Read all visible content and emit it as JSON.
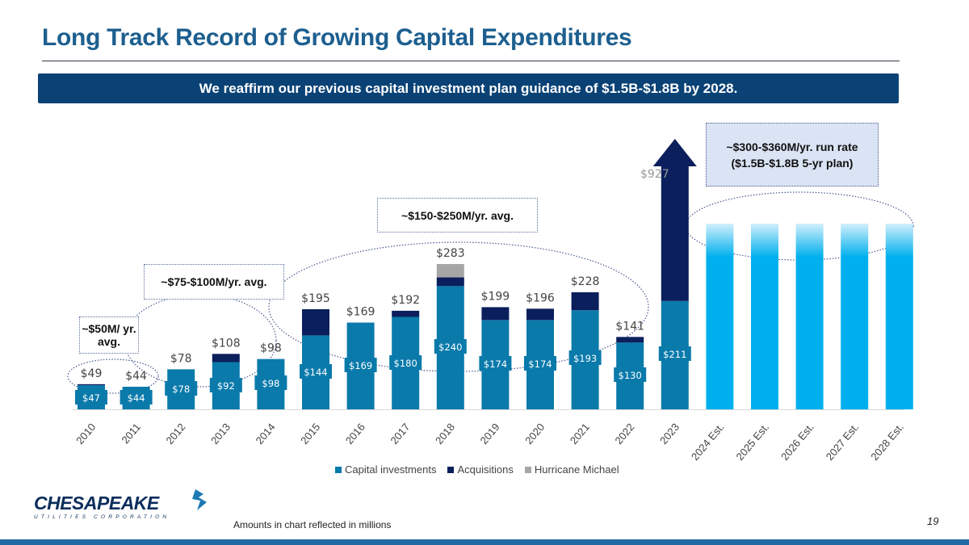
{
  "header": {
    "title": "Long Track Record of Growing Capital Expenditures",
    "banner": "We reaffirm our previous capital investment plan guidance of $1.5B-$1.8B by 2028."
  },
  "callouts": {
    "c50": "~$50M/ yr. avg.",
    "c75": "~$75-$100M/yr. avg.",
    "c150": "~$150-$250M/yr. avg.",
    "run_rate_line1": "~$300-$360M/yr. run rate",
    "run_rate_line2": "($1.5B-$1.8B 5-yr plan)"
  },
  "footer": {
    "note": "Amounts in chart reflected in millions",
    "page": "19",
    "logo_main": "CHESAPEAKE",
    "logo_sub": "UTILITIES CORPORATION"
  },
  "colors": {
    "capital": "#0a7aab",
    "acquisitions": "#0b1f5c",
    "hurricane": "#a6a6a6",
    "estimate": "#00b0ee",
    "estimate_fade": "#d2effb",
    "title": "#1d5f8f",
    "banner": "#0a4275"
  },
  "chart_data": {
    "type": "bar",
    "stacked": true,
    "title": "",
    "xlabel": "",
    "ylabel": "",
    "categories": [
      "2010",
      "2011",
      "2012",
      "2013",
      "2014",
      "2015",
      "2016",
      "2017",
      "2018",
      "2019",
      "2020",
      "2021",
      "2022",
      "2023",
      "2024 Est.",
      "2025 Est.",
      "2026 Est.",
      "2027 Est.",
      "2028 Est."
    ],
    "series": [
      {
        "name": "Capital investments",
        "values": [
          47,
          44,
          78,
          92,
          98,
          144,
          169,
          180,
          240,
          174,
          174,
          193,
          130,
          211,
          null,
          null,
          null,
          null,
          null
        ]
      },
      {
        "name": "Acquisitions",
        "values": [
          2,
          0,
          0,
          16,
          0,
          51,
          0,
          12,
          17,
          25,
          22,
          35,
          11,
          716,
          null,
          null,
          null,
          null,
          null
        ]
      },
      {
        "name": "Hurricane Michael",
        "values": [
          0,
          0,
          0,
          0,
          0,
          0,
          0,
          0,
          26,
          0,
          0,
          0,
          0,
          0,
          null,
          null,
          null,
          null,
          null
        ]
      }
    ],
    "totals": [
      49,
      44,
      78,
      108,
      98,
      195,
      169,
      192,
      283,
      199,
      196,
      228,
      141,
      927,
      null,
      null,
      null,
      null,
      null
    ],
    "total_labels": [
      "$49",
      "$44",
      "$78",
      "$108",
      "$98",
      "$195",
      "$169",
      "$192",
      "$283",
      "$199",
      "$196",
      "$228",
      "$141",
      "$927"
    ],
    "capital_labels": [
      "$47",
      "$44",
      "$78",
      "$92",
      "$98",
      "$144",
      "$169",
      "$180",
      "$240",
      "$174",
      "$174",
      "$193",
      "$130",
      "$211"
    ],
    "estimate_range_per_year": [
      300,
      360
    ],
    "estimate_plan_total_range": [
      "$1.5B",
      "$1.8B"
    ],
    "legend": [
      "Capital investments",
      "Acquisitions",
      "Hurricane Michael"
    ],
    "legend_position": "bottom",
    "grid": false,
    "ylim": [
      0,
      300
    ],
    "notes": "2023 bar is truncated with an upward arrow (total $927)."
  }
}
